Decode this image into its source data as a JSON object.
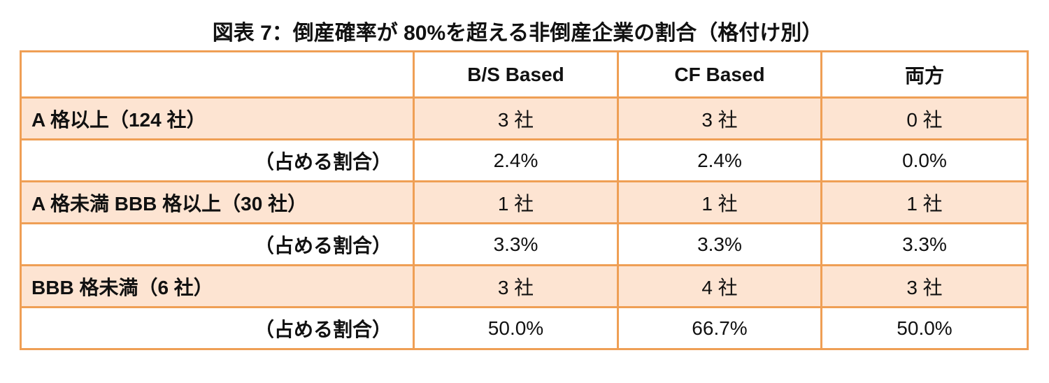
{
  "header": {
    "title": "図表 7：倒産確率が 80%を超える非倒産企業の割合（格付け別）"
  },
  "table": {
    "columns": [
      "B/S Based",
      "CF Based",
      "両方"
    ],
    "rows": [
      [
        "A 格以上（124 社）",
        "3 社",
        "3 社",
        "0 社"
      ],
      [
        "（占める割合）",
        "2.4%",
        "2.4%",
        "0.0%"
      ],
      [
        "A 格未満 BBB 格以上（30 社）",
        "1 社",
        "1 社",
        "1 社"
      ],
      [
        "（占める割合）",
        "3.3%",
        "3.3%",
        "3.3%"
      ],
      [
        "BBB 格未満（6 社）",
        "3 社",
        "4 社",
        "3 社"
      ],
      [
        "（占める割合）",
        "50.0%",
        "66.7%",
        "50.0%"
      ]
    ]
  }
}
